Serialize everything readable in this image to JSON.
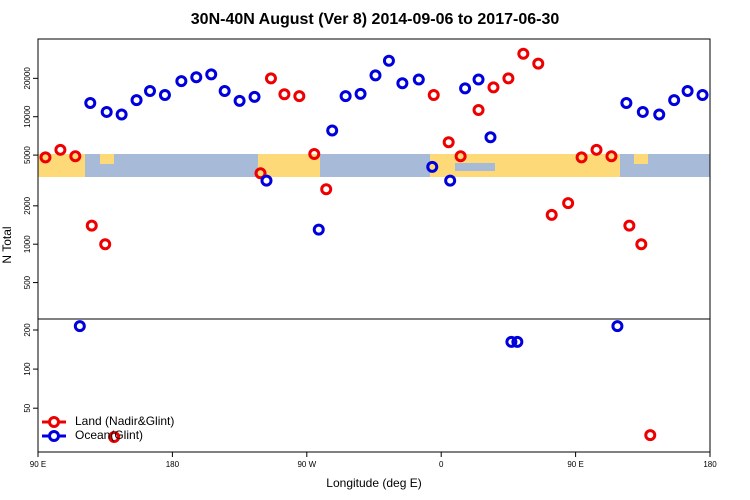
{
  "chart_data": [
    {
      "type": "scatter",
      "title": "30N-40N August (Ver 8)   2014-09-06 to 2017-06-30",
      "y_label": "N Total",
      "log_y": true,
      "xlim": [
        90,
        540
      ],
      "ylim": [
        259,
        40700
      ],
      "yticks": [
        500,
        1000,
        2000,
        5000,
        10000,
        20000
      ],
      "series": [
        {
          "color": "#ee0000",
          "x": [
            95,
            105,
            115,
            126,
            135,
            239,
            246,
            255,
            265,
            275,
            283,
            355,
            365,
            373,
            385,
            395,
            405,
            415,
            425,
            434,
            445,
            454,
            464,
            474,
            486,
            494
          ],
          "values": [
            4800,
            5500,
            4900,
            1400,
            1000,
            3600,
            20000,
            15000,
            14500,
            5100,
            2700,
            14800,
            6300,
            4900,
            11300,
            17000,
            20000,
            31200,
            26100,
            1700,
            2100,
            4800,
            5500,
            4900,
            1400,
            1000
          ]
        },
        {
          "color": "#0000dd",
          "x": [
            125,
            136,
            146,
            156,
            165,
            175,
            186,
            196,
            206,
            215,
            225,
            235,
            243,
            278,
            287,
            296,
            306,
            316,
            325,
            334,
            345,
            354,
            366,
            376,
            385,
            393,
            484,
            495,
            506,
            516,
            525,
            535
          ],
          "values": [
            12800,
            10900,
            10400,
            13500,
            15900,
            14800,
            19000,
            20400,
            21500,
            15900,
            13300,
            14300,
            3150,
            1300,
            7800,
            14500,
            15100,
            21100,
            27500,
            18300,
            19600,
            4040,
            3150,
            16700,
            19600,
            6900,
            12800,
            10900,
            10400,
            13500,
            15900,
            14800
          ]
        }
      ]
    },
    {
      "type": "scatter",
      "x_label": "Longitude (deg E)",
      "log_y": true,
      "legend": "lower left",
      "xlim": [
        90,
        540
      ],
      "ylim": [
        23,
        243
      ],
      "yticks": [
        50,
        100,
        200
      ],
      "xticks": [
        {
          "value": 90,
          "label": "90 E"
        },
        180,
        {
          "value": 270,
          "label": "90 W"
        },
        {
          "value": 360,
          "label": "0"
        },
        {
          "value": 450,
          "label": "90 E"
        },
        {
          "value": 540,
          "label": "180"
        }
      ],
      "series": [
        {
          "name": "Land (Nadir&Glint)",
          "color": "#ee0000",
          "x": [
            141,
            500
          ],
          "values": [
            30,
            31
          ]
        },
        {
          "name": "Ocean(Glint)",
          "color": "#0000dd",
          "x": [
            118,
            407,
            411,
            478
          ],
          "values": [
            214,
            162,
            162,
            214
          ]
        }
      ]
    }
  ]
}
